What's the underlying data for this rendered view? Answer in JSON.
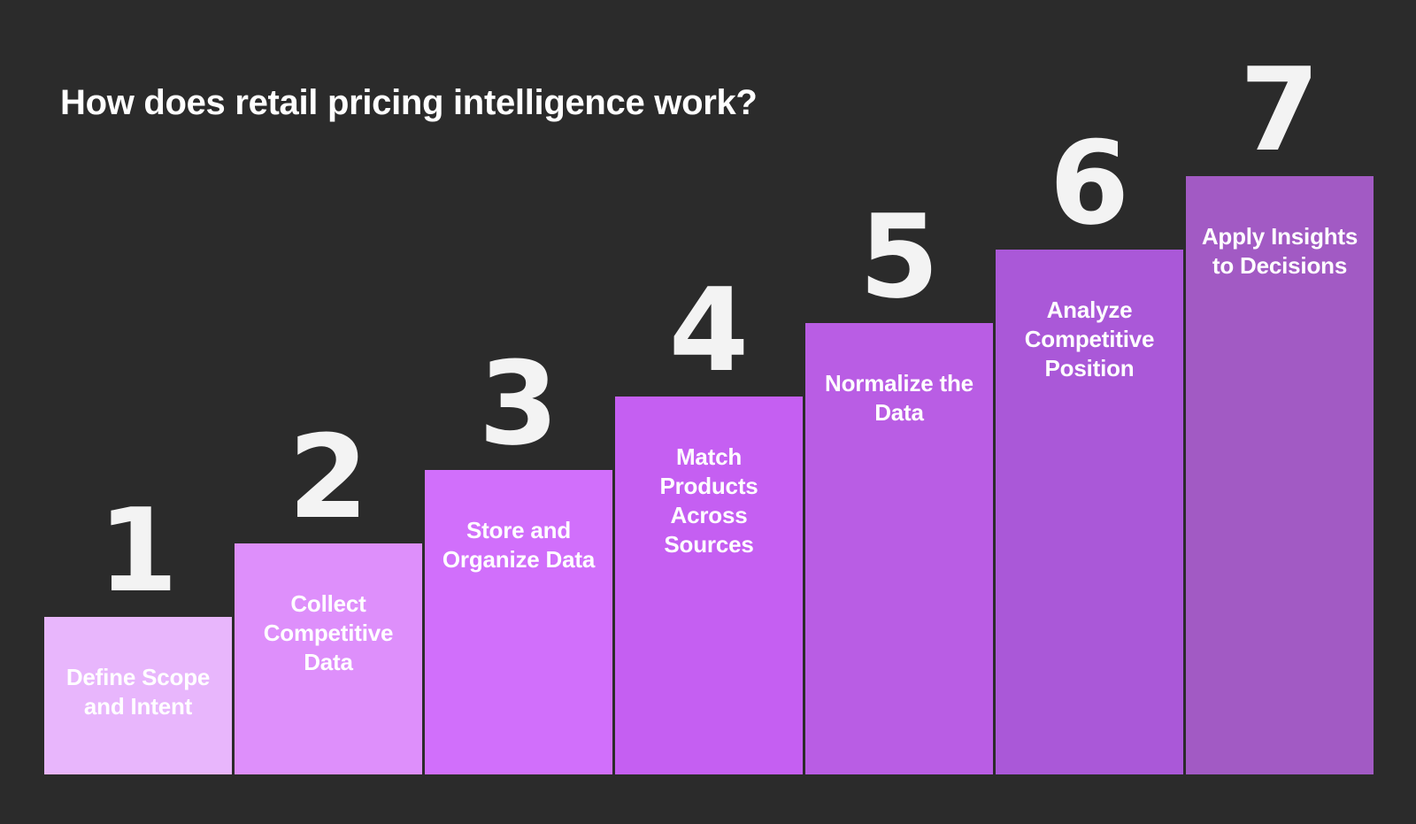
{
  "title": "How does retail pricing intelligence work?",
  "steps": [
    {
      "number": "1",
      "label": "Define Scope and Intent",
      "color": "#e8b6fc"
    },
    {
      "number": "2",
      "label": "Collect Competitive Data",
      "color": "#de8ffb"
    },
    {
      "number": "3",
      "label": "Store and Organize Data",
      "color": "#d16ffb"
    },
    {
      "number": "4",
      "label": "Match Products Across Sources",
      "color": "#c55ff2"
    },
    {
      "number": "5",
      "label": "Normalize the Data",
      "color": "#b95de4"
    },
    {
      "number": "6",
      "label": "Analyze Competitive Position",
      "color": "#aa58d8"
    },
    {
      "number": "7",
      "label": "Apply Insights to Decisions",
      "color": "#a25ac4"
    }
  ]
}
